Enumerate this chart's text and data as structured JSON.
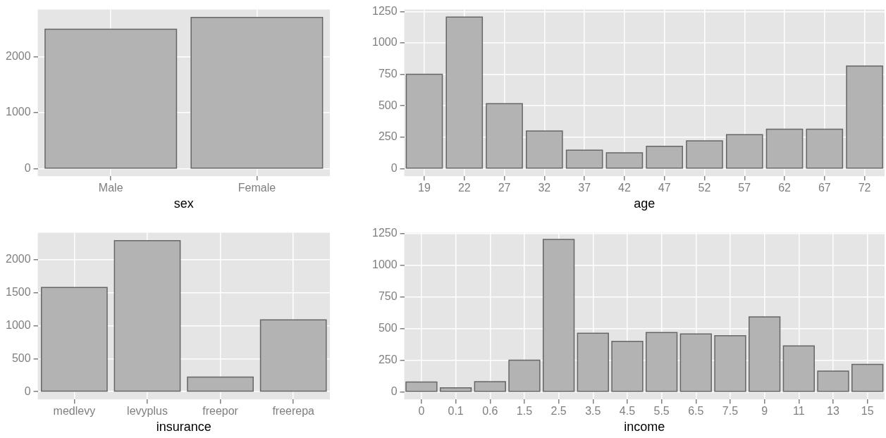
{
  "chart_data": [
    {
      "type": "bar",
      "xlabel": "sex",
      "categories": [
        "Male",
        "Female"
      ],
      "values": [
        2490,
        2700
      ],
      "color": "#b3b3b3",
      "ylim": [
        -135,
        2840
      ],
      "yticks": [
        0,
        1000,
        2000
      ],
      "grid": true
    },
    {
      "type": "bar",
      "xlabel": "age",
      "categories": [
        "19",
        "22",
        "27",
        "32",
        "37",
        "42",
        "47",
        "52",
        "57",
        "62",
        "67",
        "72"
      ],
      "values": [
        750,
        1205,
        517,
        299,
        147,
        126,
        178,
        221,
        270,
        313,
        313,
        816
      ],
      "color": "#b3b3b3",
      "ylim": [
        -60,
        1265
      ],
      "yticks": [
        0,
        250,
        500,
        750,
        1000,
        1250
      ],
      "grid": true
    },
    {
      "type": "bar",
      "xlabel": "insurance",
      "categories": [
        "medlevy",
        "levyplus",
        "freepor",
        "freerepa"
      ],
      "values": [
        1580,
        2290,
        220,
        1090
      ],
      "color": "#b3b3b3",
      "ylim": [
        -118,
        2410
      ],
      "yticks": [
        0,
        500,
        1000,
        1500,
        2000
      ],
      "grid": true
    },
    {
      "type": "bar",
      "xlabel": "income",
      "categories": [
        "0",
        "0.1",
        "0.6",
        "1.5",
        "2.5",
        "3.5",
        "4.5",
        "5.5",
        "6.5",
        "7.5",
        "9",
        "11",
        "13",
        "15"
      ],
      "values": [
        78,
        32,
        80,
        250,
        1204,
        463,
        399,
        468,
        457,
        443,
        592,
        362,
        164,
        216
      ],
      "color": "#b3b3b3",
      "ylim": [
        -60,
        1256
      ],
      "yticks": [
        0,
        250,
        500,
        750,
        1000,
        1250
      ],
      "grid": true
    }
  ]
}
